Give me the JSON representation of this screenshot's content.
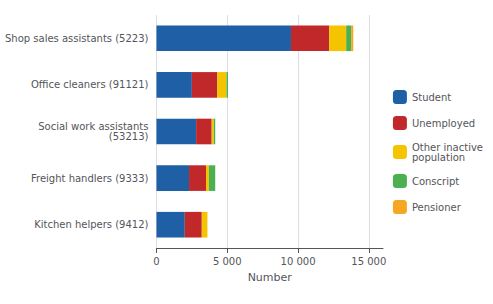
{
  "chart_data": {
    "type": "bar",
    "orientation": "horizontal",
    "stacked": true,
    "xlabel": "Number",
    "categories": [
      "Kitchen helpers (9412)",
      "Freight handlers (9333)",
      "Social work assistants\n(53213)",
      "Office cleaners (91121)",
      "Shop sales assistants (5223)"
    ],
    "series": [
      {
        "name": "Student",
        "color": "#1F5FA6",
        "values": [
          2000,
          2300,
          2800,
          2500,
          9500
        ]
      },
      {
        "name": "Unemployed",
        "color": "#C0282A",
        "values": [
          1200,
          1200,
          1100,
          1800,
          2700
        ]
      },
      {
        "name": "Other inactive\npopulation",
        "color": "#F5C400",
        "values": [
          400,
          200,
          150,
          650,
          1200
        ]
      },
      {
        "name": "Conscript",
        "color": "#4CAF50",
        "values": [
          0,
          450,
          100,
          100,
          350
        ]
      },
      {
        "name": "Pensioner",
        "color": "#F5A623",
        "values": [
          0,
          0,
          0,
          0,
          150
        ]
      }
    ],
    "xlim": [
      0,
      16000
    ],
    "xticks": [
      0,
      {
        "value": 5000,
        "label": "5 000"
      },
      {
        "value": 10000,
        "label": "10 000"
      },
      {
        "value": 15000,
        "label": "15 000"
      }
    ],
    "grid": true,
    "legend": "right"
  }
}
